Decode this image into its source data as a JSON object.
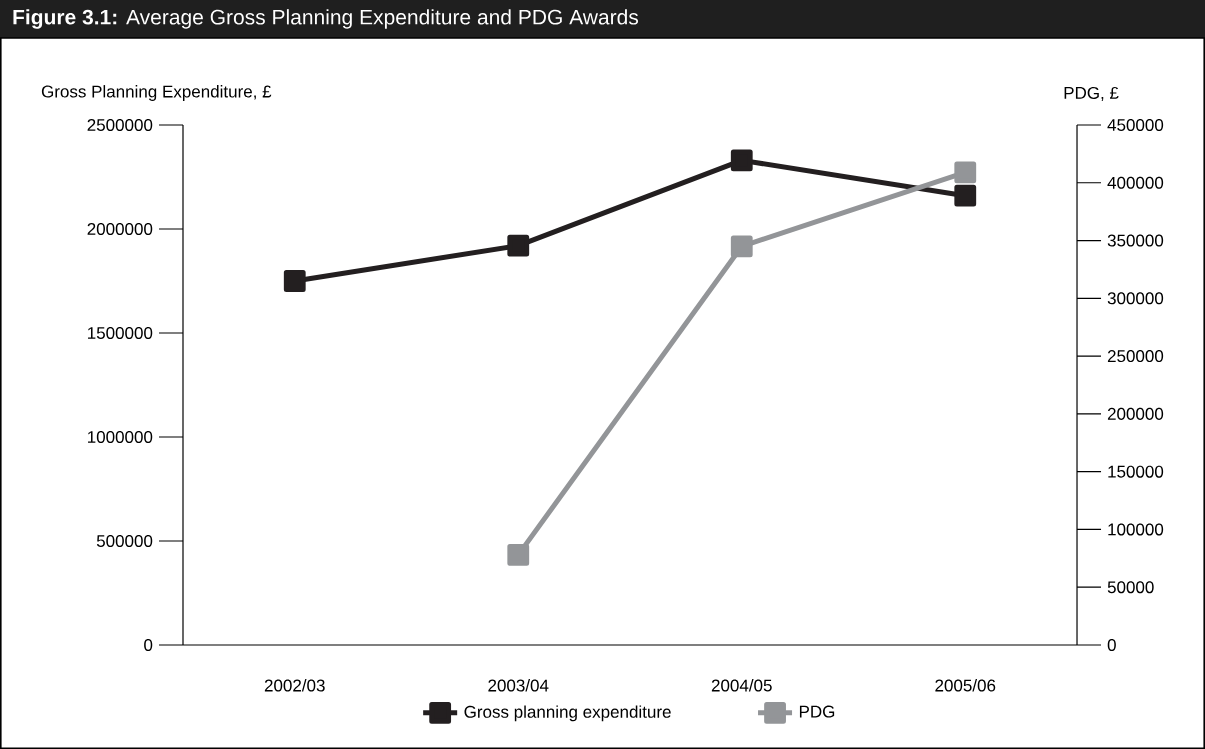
{
  "chart_data": {
    "type": "line",
    "title": "**Figure 3.1:** Average Gross Planning Expenditure and PDG Awards",
    "ylabel": "Gross Planning Expenditure, £",
    "y2label": "PDG, £",
    "categories": [
      "2002/03",
      "2003/04",
      "2004/05",
      "2005/06"
    ],
    "series": [
      {
        "name": "Gross planning expenditure",
        "color": "#231f20",
        "values": [
          1750000,
          1920000,
          2330000,
          2160000
        ]
      },
      {
        "name": "PDG",
        "color": "#939598",
        "axis": "y2",
        "values": [
          null,
          78000,
          345000,
          409000
        ]
      }
    ],
    "ylim": [
      0,
      2500000
    ],
    "yticks": [
      0,
      500000,
      1000000,
      1500000,
      2000000,
      2500000
    ],
    "y2lim": [
      0,
      450000
    ],
    "y2ticks": [
      0,
      50000,
      100000,
      150000,
      200000,
      250000,
      300000,
      350000,
      400000,
      450000
    ],
    "marker": "square",
    "line_style": "solid",
    "legend": "bottom",
    "grid": false
  }
}
